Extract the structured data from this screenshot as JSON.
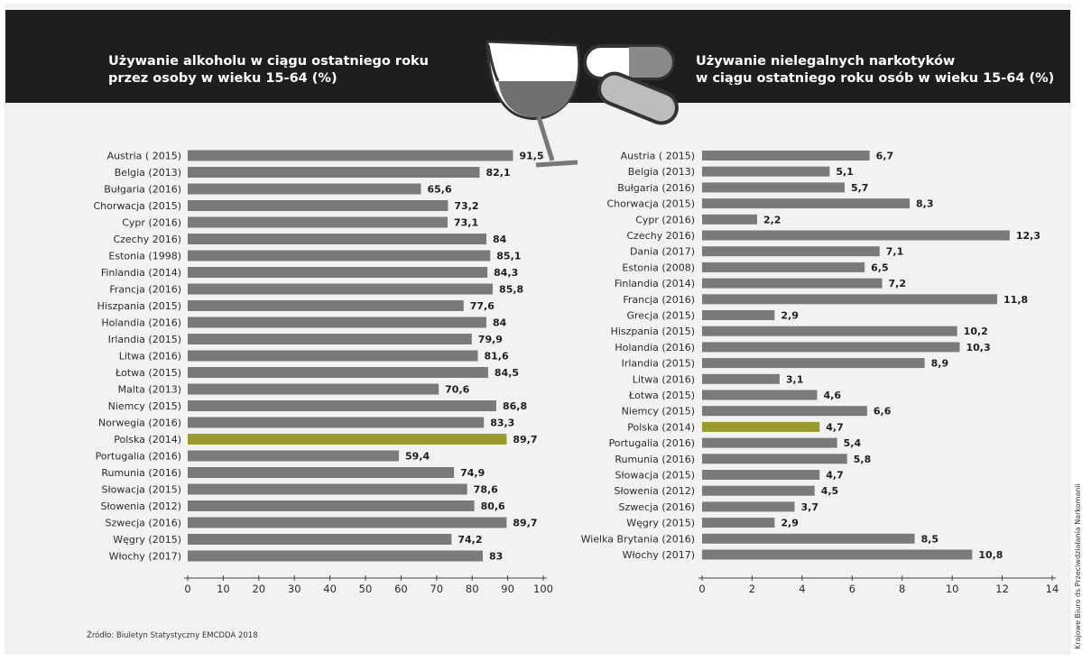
{
  "colors": {
    "header_bg": "#1e1e1e",
    "bar": "#7a7a7a",
    "highlight_bar": "#9b9a2c",
    "background": "#f2f2f2"
  },
  "header": {
    "left_title_line1": "Używanie alkoholu w ciągu ostatniego roku",
    "left_title_line2": "przez osoby w wieku 15-64 (%)",
    "right_title_line1": "Używanie nielegalnych narkotyków",
    "right_title_line2": "w ciągu ostatniego roku osób w wieku 15-64 (%)",
    "illustration_icons": [
      "wine-glass-icon",
      "pill-capsule-icon"
    ]
  },
  "source_text": "Źródło: Biuletyn Statystyczny EMCDDA 2018",
  "side_credit": "Krajowe Biuro ds Przeciwdziałania Narkomanii",
  "chart_data": [
    {
      "type": "bar",
      "orientation": "horizontal",
      "highlight": "Polska (2014)",
      "xlim": [
        0,
        100
      ],
      "ticks": [
        0,
        10,
        20,
        30,
        40,
        50,
        60,
        70,
        80,
        90,
        100
      ],
      "categories": [
        "Austria ( 2015)",
        "Belgia (2013)",
        "Bułgaria (2016)",
        "Chorwacja (2015)",
        "Cypr (2016)",
        "Czechy 2016)",
        "Estonia (1998)",
        "Finlandia (2014)",
        "Francja (2016)",
        "Hiszpania (2015)",
        "Holandia (2016)",
        "Irlandia (2015)",
        "Litwa (2016)",
        "Łotwa (2015)",
        "Malta (2013)",
        "Niemcy (2015)",
        "Norwegia (2016)",
        "Polska (2014)",
        "Portugalia (2016)",
        "Rumunia (2016)",
        "Słowacja  (2015)",
        "Słowenia (2012)",
        "Szwecja (2016)",
        "Węgry (2015)",
        "Włochy (2017)"
      ],
      "values": [
        91.5,
        82.1,
        65.6,
        73.2,
        73.1,
        84,
        85.1,
        84.3,
        85.8,
        77.6,
        84,
        79.9,
        81.6,
        84.5,
        70.6,
        86.8,
        83.3,
        89.7,
        59.4,
        74.9,
        78.6,
        80.6,
        89.7,
        74.2,
        83
      ],
      "labels": [
        "91,5",
        "82,1",
        "65,6",
        "73,2",
        "73,1",
        "84",
        "85,1",
        "84,3",
        "85,8",
        "77,6",
        "84",
        "79,9",
        "81,6",
        "84,5",
        "70,6",
        "86,8",
        "83,3",
        "89,7",
        "59,4",
        "74,9",
        "78,6",
        "80,6",
        "89,7",
        "74,2",
        "83"
      ]
    },
    {
      "type": "bar",
      "orientation": "horizontal",
      "highlight": "Polska (2014)",
      "xlim": [
        0,
        14
      ],
      "ticks": [
        0,
        2,
        4,
        6,
        8,
        10,
        12,
        14
      ],
      "categories": [
        "Austria ( 2015)",
        "Belgia (2013)",
        "Bułgaria (2016)",
        "Chorwacja (2015)",
        "Cypr (2016)",
        "Czechy 2016)",
        "Dania (2017)",
        "Estonia (2008)",
        "Finlandia (2014)",
        "Francja (2016)",
        "Grecja (2015)",
        "Hiszpania (2015)",
        "Holandia (2016)",
        "Irlandia (2015)",
        "Litwa (2016)",
        "Łotwa (2015)",
        "Niemcy (2015)",
        "Polska (2014)",
        "Portugalia (2016)",
        "Rumunia (2016)",
        "Słowacja  (2015)",
        "Słowenia (2012)",
        "Szwecja (2016)",
        "Węgry (2015)",
        "Wielka Brytania (2016)",
        "Włochy (2017)"
      ],
      "values": [
        6.7,
        5.1,
        5.7,
        8.3,
        2.2,
        12.3,
        7.1,
        6.5,
        7.2,
        11.8,
        2.9,
        10.2,
        10.3,
        8.9,
        3.1,
        4.6,
        6.6,
        4.7,
        5.4,
        5.8,
        4.7,
        4.5,
        3.7,
        2.9,
        8.5,
        10.8
      ],
      "labels": [
        "6,7",
        "5,1",
        "5,7",
        "8,3",
        "2,2",
        "12,3",
        "7,1",
        "6,5",
        "7,2",
        "11,8",
        "2,9",
        "10,2",
        "10,3",
        "8,9",
        "3,1",
        "4,6",
        "6,6",
        "4,7",
        "5,4",
        "5,8",
        "4,7",
        "4,5",
        "3,7",
        "2,9",
        "8,5",
        "10,8"
      ]
    }
  ]
}
